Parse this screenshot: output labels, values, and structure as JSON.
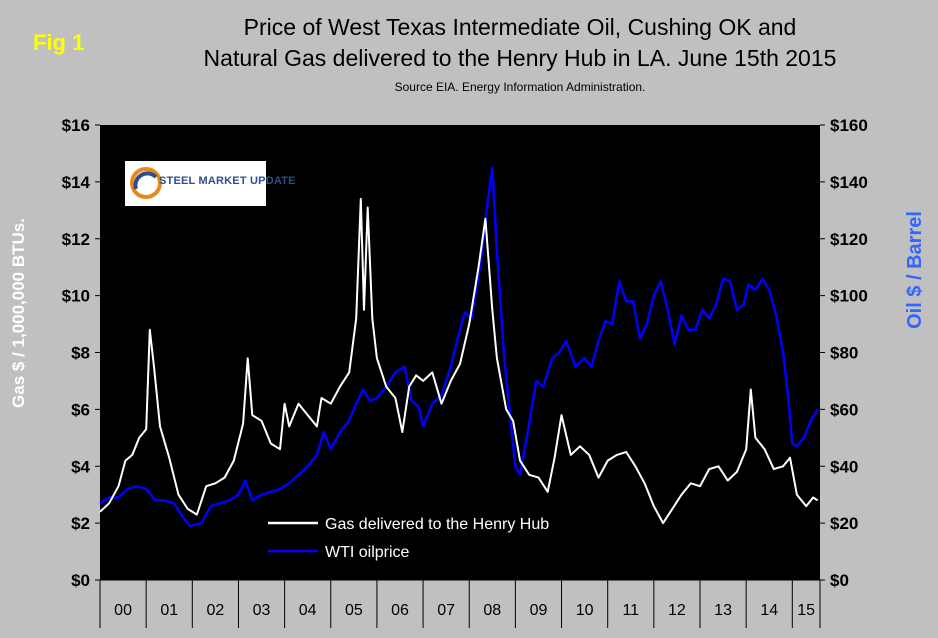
{
  "fig_label": "Fig 1",
  "title_line1": "Price of West Texas Intermediate Oil, Cushing OK and",
  "title_line2": "Natural Gas delivered to the Henry Hub in LA. June 15th 2015",
  "subtitle": "Source EIA. Energy Information Administration.",
  "logo_text": "STEEL MARKET UPDATE",
  "colors": {
    "background": "#c0c0c0",
    "plot_bg": "#000000",
    "gas": "#ffffff",
    "oil": "#0000ff",
    "fig_label": "#ffff00",
    "right_axis_title": "#3366ff"
  },
  "chart_data": {
    "type": "line",
    "title": "Price of West Texas Intermediate Oil, Cushing OK and Natural Gas delivered to the Henry Hub in LA. June 15th 2015",
    "ylabel_left": "Gas $ / 1,000,000 BTUs.",
    "ylabel_right": "Oil $ / Barrel",
    "ylim_left": [
      0,
      16
    ],
    "ylim_right": [
      0,
      160
    ],
    "yticks_left": [
      "$0",
      "$2",
      "$4",
      "$6",
      "$8",
      "$10",
      "$12",
      "$14",
      "$16"
    ],
    "yticks_right": [
      "$0",
      "$20",
      "$40",
      "$60",
      "$80",
      "$100",
      "$120",
      "$140",
      "$160"
    ],
    "xlim": [
      2000.0,
      2015.6
    ],
    "x_categories": [
      "00",
      "01",
      "02",
      "03",
      "04",
      "05",
      "06",
      "07",
      "08",
      "09",
      "10",
      "11",
      "12",
      "13",
      "14",
      "15"
    ],
    "grid": false,
    "legend": "bottom-left",
    "series": [
      {
        "name": "Gas delivered to the Henry Hub",
        "axis": "left",
        "points": [
          [
            2000.0,
            2.4
          ],
          [
            2000.2,
            2.7
          ],
          [
            2000.4,
            3.3
          ],
          [
            2000.55,
            4.2
          ],
          [
            2000.7,
            4.4
          ],
          [
            2000.85,
            5.0
          ],
          [
            2001.0,
            5.3
          ],
          [
            2001.08,
            8.8
          ],
          [
            2001.17,
            7.5
          ],
          [
            2001.3,
            5.4
          ],
          [
            2001.5,
            4.3
          ],
          [
            2001.7,
            3.0
          ],
          [
            2001.9,
            2.5
          ],
          [
            2002.1,
            2.3
          ],
          [
            2002.3,
            3.3
          ],
          [
            2002.5,
            3.4
          ],
          [
            2002.7,
            3.6
          ],
          [
            2002.9,
            4.2
          ],
          [
            2003.1,
            5.5
          ],
          [
            2003.2,
            7.8
          ],
          [
            2003.3,
            5.8
          ],
          [
            2003.5,
            5.6
          ],
          [
            2003.7,
            4.8
          ],
          [
            2003.9,
            4.6
          ],
          [
            2004.0,
            6.2
          ],
          [
            2004.1,
            5.4
          ],
          [
            2004.3,
            6.2
          ],
          [
            2004.5,
            5.8
          ],
          [
            2004.7,
            5.4
          ],
          [
            2004.8,
            6.4
          ],
          [
            2005.0,
            6.2
          ],
          [
            2005.2,
            6.8
          ],
          [
            2005.4,
            7.3
          ],
          [
            2005.55,
            9.2
          ],
          [
            2005.65,
            13.4
          ],
          [
            2005.72,
            9.5
          ],
          [
            2005.8,
            13.1
          ],
          [
            2005.9,
            9.2
          ],
          [
            2006.0,
            7.8
          ],
          [
            2006.2,
            6.8
          ],
          [
            2006.4,
            6.4
          ],
          [
            2006.55,
            5.2
          ],
          [
            2006.7,
            6.8
          ],
          [
            2006.85,
            7.2
          ],
          [
            2007.0,
            7.0
          ],
          [
            2007.2,
            7.3
          ],
          [
            2007.4,
            6.2
          ],
          [
            2007.6,
            7.0
          ],
          [
            2007.8,
            7.6
          ],
          [
            2008.0,
            9.0
          ],
          [
            2008.2,
            11.0
          ],
          [
            2008.35,
            12.7
          ],
          [
            2008.5,
            9.5
          ],
          [
            2008.6,
            7.8
          ],
          [
            2008.8,
            6.0
          ],
          [
            2008.95,
            5.6
          ],
          [
            2009.1,
            4.2
          ],
          [
            2009.3,
            3.7
          ],
          [
            2009.5,
            3.6
          ],
          [
            2009.7,
            3.1
          ],
          [
            2009.85,
            4.3
          ],
          [
            2010.0,
            5.8
          ],
          [
            2010.2,
            4.4
          ],
          [
            2010.4,
            4.7
          ],
          [
            2010.6,
            4.4
          ],
          [
            2010.8,
            3.6
          ],
          [
            2011.0,
            4.2
          ],
          [
            2011.2,
            4.4
          ],
          [
            2011.4,
            4.5
          ],
          [
            2011.6,
            4.0
          ],
          [
            2011.8,
            3.4
          ],
          [
            2012.0,
            2.6
          ],
          [
            2012.2,
            2.0
          ],
          [
            2012.4,
            2.5
          ],
          [
            2012.6,
            3.0
          ],
          [
            2012.8,
            3.4
          ],
          [
            2013.0,
            3.3
          ],
          [
            2013.2,
            3.9
          ],
          [
            2013.4,
            4.0
          ],
          [
            2013.6,
            3.5
          ],
          [
            2013.8,
            3.8
          ],
          [
            2014.0,
            4.6
          ],
          [
            2014.1,
            6.7
          ],
          [
            2014.2,
            5.0
          ],
          [
            2014.4,
            4.6
          ],
          [
            2014.6,
            3.9
          ],
          [
            2014.8,
            4.0
          ],
          [
            2014.95,
            4.3
          ],
          [
            2015.1,
            3.0
          ],
          [
            2015.3,
            2.6
          ],
          [
            2015.45,
            2.9
          ],
          [
            2015.55,
            2.8
          ]
        ]
      },
      {
        "name": "WTI oilprice",
        "axis": "right",
        "points": [
          [
            2000.0,
            27
          ],
          [
            2000.2,
            29
          ],
          [
            2000.4,
            29
          ],
          [
            2000.6,
            32
          ],
          [
            2000.8,
            33
          ],
          [
            2001.0,
            32
          ],
          [
            2001.2,
            28
          ],
          [
            2001.4,
            28
          ],
          [
            2001.6,
            27
          ],
          [
            2001.8,
            22
          ],
          [
            2001.95,
            19
          ],
          [
            2002.2,
            20
          ],
          [
            2002.4,
            26
          ],
          [
            2002.6,
            27
          ],
          [
            2002.8,
            28
          ],
          [
            2003.0,
            30
          ],
          [
            2003.15,
            35
          ],
          [
            2003.3,
            28
          ],
          [
            2003.5,
            30
          ],
          [
            2003.7,
            31
          ],
          [
            2003.9,
            32
          ],
          [
            2004.1,
            34
          ],
          [
            2004.3,
            37
          ],
          [
            2004.5,
            40
          ],
          [
            2004.7,
            44
          ],
          [
            2004.85,
            52
          ],
          [
            2005.0,
            46
          ],
          [
            2005.2,
            52
          ],
          [
            2005.4,
            56
          ],
          [
            2005.55,
            62
          ],
          [
            2005.7,
            67
          ],
          [
            2005.85,
            63
          ],
          [
            2006.0,
            64
          ],
          [
            2006.2,
            68
          ],
          [
            2006.4,
            73
          ],
          [
            2006.6,
            75
          ],
          [
            2006.75,
            63
          ],
          [
            2006.9,
            61
          ],
          [
            2007.0,
            54
          ],
          [
            2007.2,
            62
          ],
          [
            2007.4,
            65
          ],
          [
            2007.6,
            75
          ],
          [
            2007.75,
            85
          ],
          [
            2007.9,
            94
          ],
          [
            2008.05,
            92
          ],
          [
            2008.25,
            112
          ],
          [
            2008.4,
            133
          ],
          [
            2008.5,
            145
          ],
          [
            2008.6,
            116
          ],
          [
            2008.75,
            80
          ],
          [
            2008.9,
            55
          ],
          [
            2009.0,
            40
          ],
          [
            2009.1,
            37
          ],
          [
            2009.3,
            55
          ],
          [
            2009.45,
            70
          ],
          [
            2009.6,
            68
          ],
          [
            2009.8,
            78
          ],
          [
            2009.95,
            80
          ],
          [
            2010.1,
            84
          ],
          [
            2010.3,
            75
          ],
          [
            2010.5,
            78
          ],
          [
            2010.65,
            75
          ],
          [
            2010.8,
            84
          ],
          [
            2010.95,
            91
          ],
          [
            2011.1,
            90
          ],
          [
            2011.25,
            105
          ],
          [
            2011.4,
            98
          ],
          [
            2011.55,
            98
          ],
          [
            2011.7,
            85
          ],
          [
            2011.85,
            90
          ],
          [
            2012.0,
            100
          ],
          [
            2012.15,
            105
          ],
          [
            2012.3,
            95
          ],
          [
            2012.45,
            83
          ],
          [
            2012.6,
            93
          ],
          [
            2012.75,
            88
          ],
          [
            2012.9,
            88
          ],
          [
            2013.05,
            95
          ],
          [
            2013.2,
            92
          ],
          [
            2013.35,
            97
          ],
          [
            2013.5,
            106
          ],
          [
            2013.65,
            105
          ],
          [
            2013.8,
            95
          ],
          [
            2013.95,
            97
          ],
          [
            2014.05,
            104
          ],
          [
            2014.2,
            102
          ],
          [
            2014.35,
            106
          ],
          [
            2014.5,
            102
          ],
          [
            2014.65,
            93
          ],
          [
            2014.8,
            80
          ],
          [
            2014.9,
            66
          ],
          [
            2015.0,
            48
          ],
          [
            2015.1,
            47
          ],
          [
            2015.25,
            50
          ],
          [
            2015.4,
            56
          ],
          [
            2015.55,
            60
          ]
        ]
      }
    ]
  }
}
